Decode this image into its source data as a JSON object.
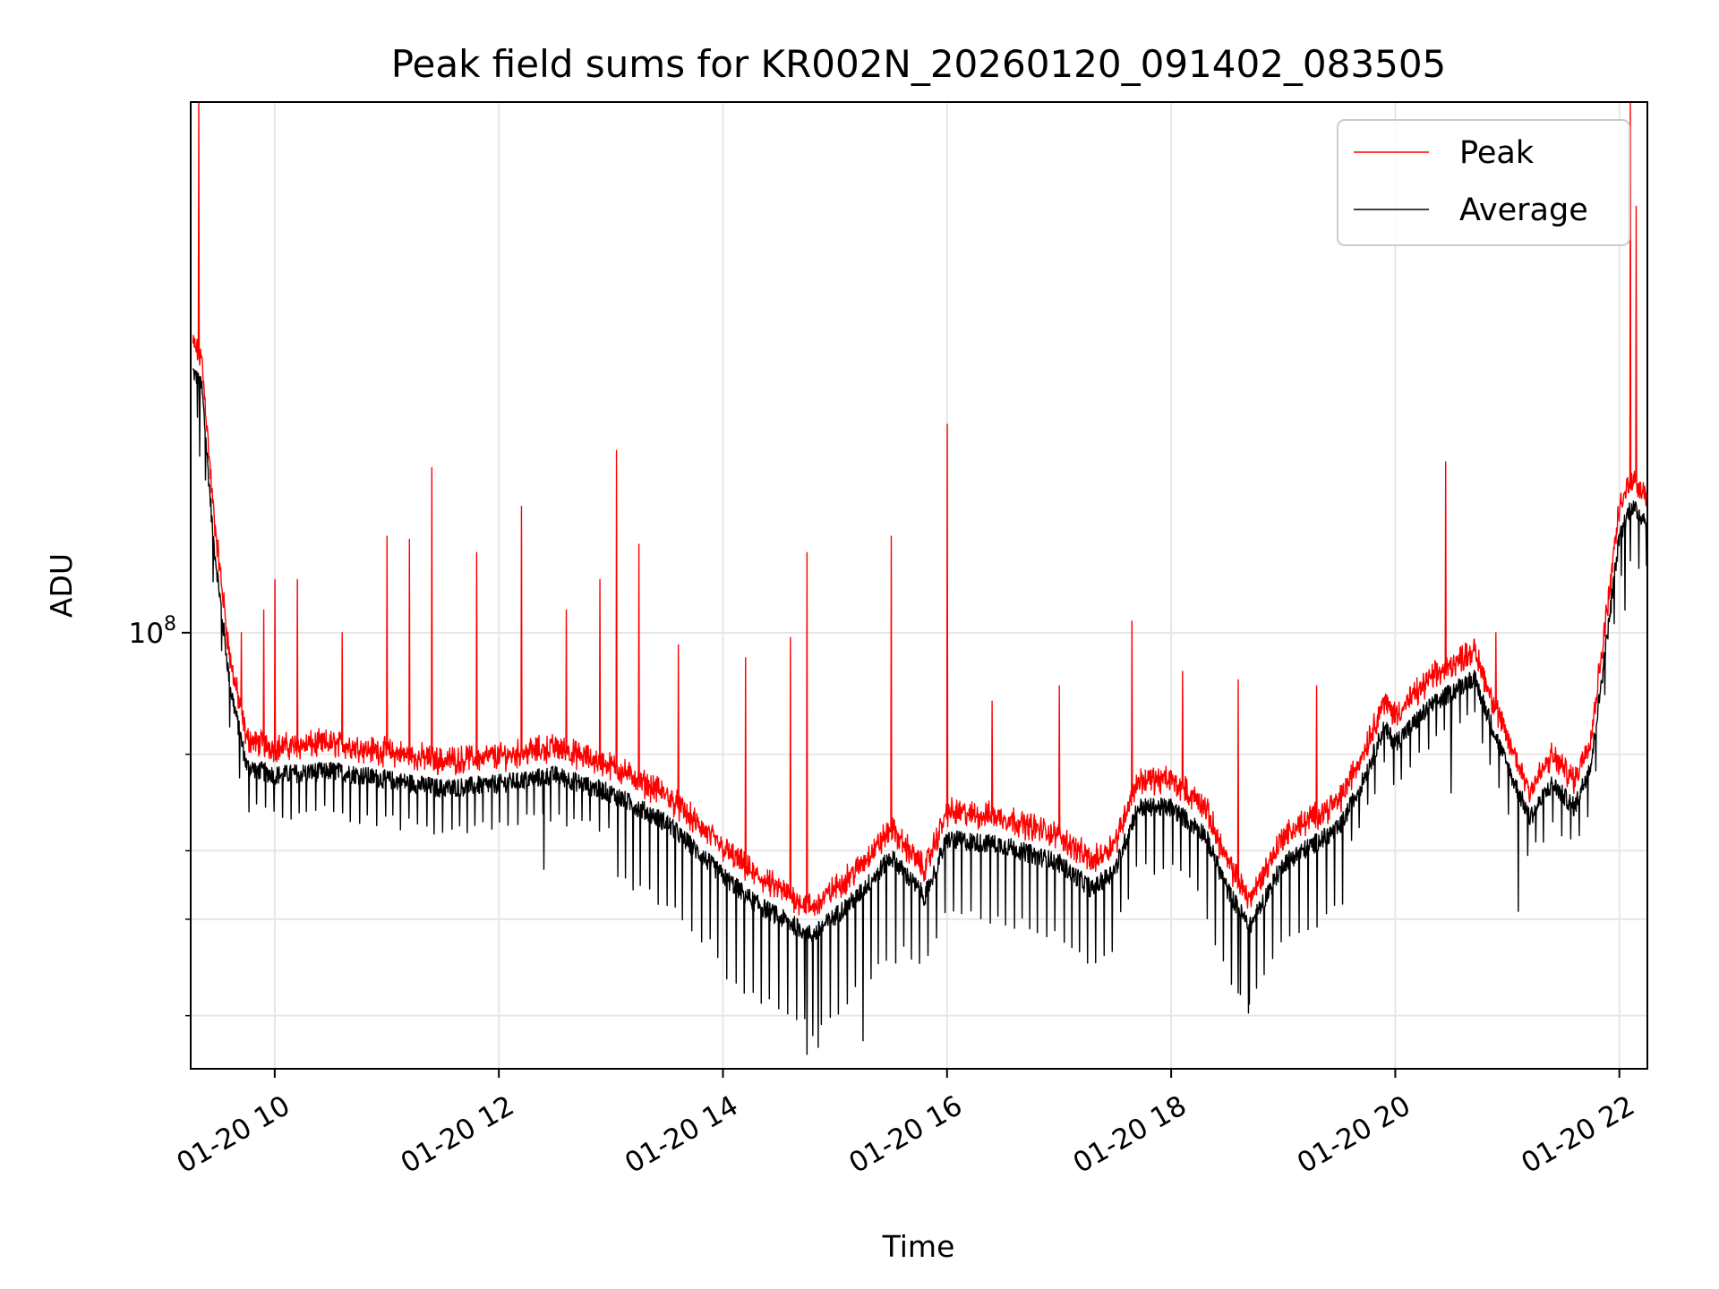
{
  "chart_data": {
    "type": "line",
    "title": "Peak field sums for KR002N_20260120_091402_083505",
    "xlabel": "Time",
    "ylabel": "ADU",
    "yscale": "log",
    "xlim_hours": [
      9.25,
      22.25
    ],
    "ylim": [
      16000000,
      930000000
    ],
    "grid": true,
    "legend_position": "top-right",
    "x_ticks": [
      {
        "value": 10,
        "label": "01-20 10"
      },
      {
        "value": 12,
        "label": "01-20 12"
      },
      {
        "value": 14,
        "label": "01-20 14"
      },
      {
        "value": 16,
        "label": "01-20 16"
      },
      {
        "value": 18,
        "label": "01-20 18"
      },
      {
        "value": 20,
        "label": "01-20 20"
      },
      {
        "value": 22,
        "label": "01-20 22"
      }
    ],
    "y_major_ticks": [
      {
        "value": 100000000,
        "label_base": "10",
        "label_exp": "8"
      }
    ],
    "y_minor_ticks": [
      20000000,
      30000000,
      40000000,
      60000000
    ],
    "x_unit": "hours since 2026-01-20 00:00",
    "series": [
      {
        "name": "Average",
        "color": "#000000",
        "baseline": {
          "x": [
            9.27,
            9.35,
            9.45,
            9.6,
            9.75,
            10.0,
            10.5,
            11.0,
            11.5,
            12.0,
            12.5,
            13.0,
            13.5,
            14.0,
            14.3,
            14.8,
            15.2,
            15.5,
            15.8,
            16.0,
            16.5,
            17.0,
            17.3,
            17.5,
            17.7,
            18.0,
            18.3,
            18.5,
            18.7,
            19.0,
            19.5,
            19.7,
            19.9,
            20.0,
            20.3,
            20.7,
            21.0,
            21.2,
            21.4,
            21.6,
            21.75,
            21.9,
            22.0,
            22.1,
            22.25
          ],
          "y": [
            300000000,
            280000000,
            150000000,
            80000000,
            57000000,
            55000000,
            56000000,
            54000000,
            52000000,
            53000000,
            55000000,
            51000000,
            45000000,
            36000000,
            32000000,
            28000000,
            33000000,
            39000000,
            33000000,
            42000000,
            41000000,
            38000000,
            34000000,
            37000000,
            48000000,
            48000000,
            43000000,
            34000000,
            29000000,
            38000000,
            44000000,
            53000000,
            67000000,
            63000000,
            73000000,
            83000000,
            57000000,
            46000000,
            53000000,
            48000000,
            58000000,
            102000000,
            150000000,
            170000000,
            160000000
          ]
        },
        "dips": {
          "interval_hours": 0.075,
          "depth_default": 0.82,
          "depth_profile": [
            {
              "x": [
                9.3,
                10.3
              ],
              "depth": 0.85
            },
            {
              "x": [
                10.3,
                13.0
              ],
              "depth": 0.85
            },
            {
              "x": [
                13.0,
                14.0
              ],
              "depth": 0.72
            },
            {
              "x": [
                14.0,
                15.6
              ],
              "depth": 0.68
            },
            {
              "x": [
                15.6,
                17.5
              ],
              "depth": 0.74
            },
            {
              "x": [
                17.5,
                18.3
              ],
              "depth": 0.78
            },
            {
              "x": [
                18.3,
                19.6
              ],
              "depth": 0.72
            },
            {
              "x": [
                19.6,
                22.0
              ],
              "depth": 0.86
            }
          ],
          "extra_minima": [
            {
              "x": 9.33,
              "y": 210000000
            },
            {
              "x": 12.4,
              "y": 37000000
            },
            {
              "x": 14.75,
              "y": 17000000
            },
            {
              "x": 14.85,
              "y": 17500000
            },
            {
              "x": 15.25,
              "y": 18000000
            },
            {
              "x": 18.6,
              "y": 22000000
            },
            {
              "x": 18.7,
              "y": 21000000
            },
            {
              "x": 20.5,
              "y": 51000000
            },
            {
              "x": 21.1,
              "y": 31000000
            },
            {
              "x": 22.05,
              "y": 110000000
            }
          ]
        }
      },
      {
        "name": "Peak",
        "color": "#ff0000",
        "ratio_above_average": 1.09,
        "spikes": [
          {
            "x": 9.32,
            "y": 930000000
          },
          {
            "x": 9.7,
            "y": 100000000
          },
          {
            "x": 9.9,
            "y": 110000000
          },
          {
            "x": 10.0,
            "y": 125000000
          },
          {
            "x": 10.2,
            "y": 125000000
          },
          {
            "x": 10.6,
            "y": 100000000
          },
          {
            "x": 11.0,
            "y": 150000000
          },
          {
            "x": 11.2,
            "y": 148000000
          },
          {
            "x": 11.4,
            "y": 200000000
          },
          {
            "x": 11.8,
            "y": 140000000
          },
          {
            "x": 12.2,
            "y": 170000000
          },
          {
            "x": 12.6,
            "y": 110000000
          },
          {
            "x": 12.9,
            "y": 125000000
          },
          {
            "x": 13.05,
            "y": 215000000
          },
          {
            "x": 13.25,
            "y": 145000000
          },
          {
            "x": 13.6,
            "y": 95000000
          },
          {
            "x": 14.2,
            "y": 90000000
          },
          {
            "x": 14.6,
            "y": 98000000
          },
          {
            "x": 14.75,
            "y": 140000000
          },
          {
            "x": 15.5,
            "y": 150000000
          },
          {
            "x": 16.0,
            "y": 240000000
          },
          {
            "x": 16.4,
            "y": 75000000
          },
          {
            "x": 17.0,
            "y": 80000000
          },
          {
            "x": 17.65,
            "y": 105000000
          },
          {
            "x": 18.1,
            "y": 85000000
          },
          {
            "x": 18.6,
            "y": 82000000
          },
          {
            "x": 19.3,
            "y": 80000000
          },
          {
            "x": 20.45,
            "y": 205000000
          },
          {
            "x": 20.9,
            "y": 100000000
          },
          {
            "x": 22.1,
            "y": 930000000
          },
          {
            "x": 22.15,
            "y": 600000000
          }
        ]
      }
    ]
  }
}
